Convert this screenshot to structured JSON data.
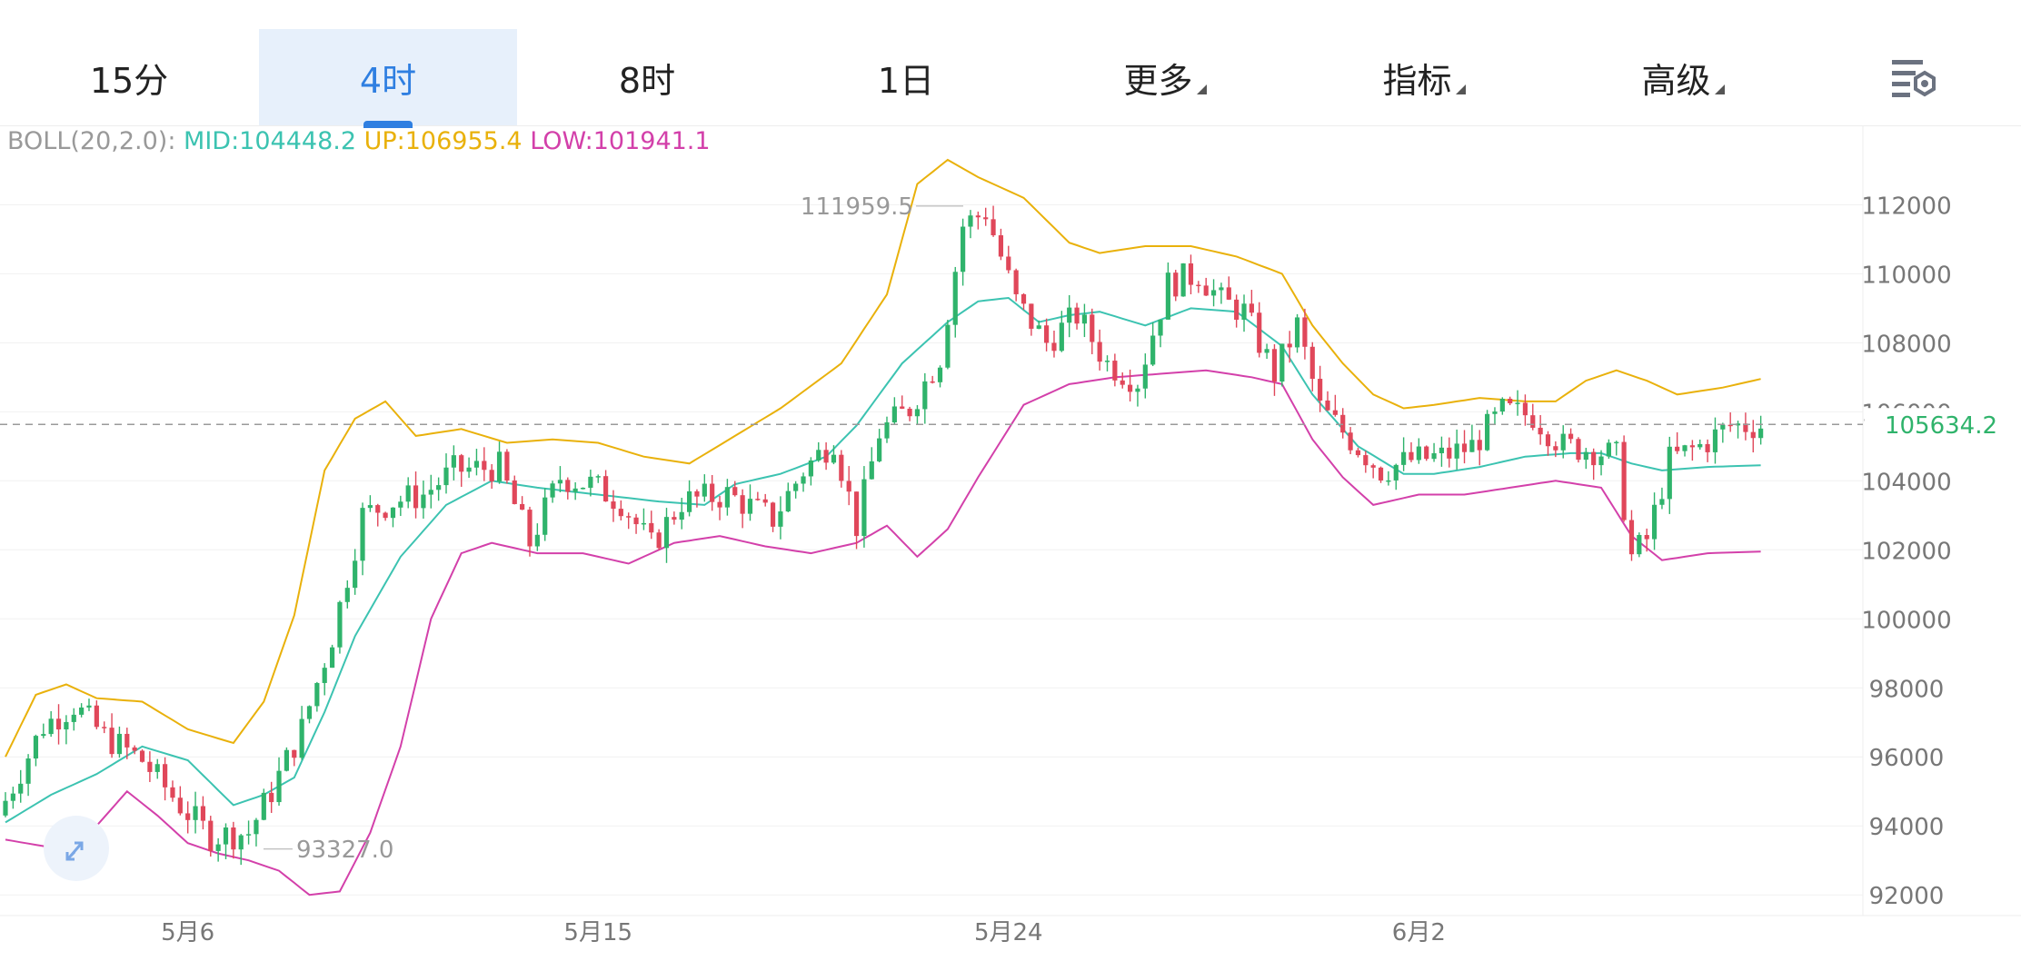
{
  "tabs": [
    {
      "label": "15分",
      "active": false,
      "dropdown": false
    },
    {
      "label": "4时",
      "active": true,
      "dropdown": false
    },
    {
      "label": "8时",
      "active": false,
      "dropdown": false
    },
    {
      "label": "1日",
      "active": false,
      "dropdown": false
    },
    {
      "label": "更多",
      "active": false,
      "dropdown": true
    },
    {
      "label": "指标",
      "active": false,
      "dropdown": true
    },
    {
      "label": "高级",
      "active": false,
      "dropdown": true
    }
  ],
  "settings_icon": "chart-settings-icon",
  "expand_icon": "expand-arrows-icon",
  "legend": {
    "prefix": "BOLL(20,2.0):",
    "mid": "MID:104448.2",
    "up": "UP:106955.4",
    "low": "LOW:101941.1"
  },
  "colors": {
    "accent": "#2f7fe1",
    "up_candle": "#2fb36b",
    "down_candle": "#e0475a",
    "mid": "#3cc3b1",
    "upper": "#e9b10b",
    "lower": "#d340aa",
    "price_label": "#2fb36b"
  },
  "chart_data": {
    "type": "candlestick",
    "indicator": "BOLL(20,2.0)",
    "y_ticks": [
      92000,
      94000,
      96000,
      98000,
      100000,
      102000,
      104000,
      106000,
      108000,
      110000,
      112000
    ],
    "ylim": [
      91400,
      114300
    ],
    "x_labels": [
      {
        "label": "5月6",
        "index": 24
      },
      {
        "label": "5月15",
        "index": 78
      },
      {
        "label": "5月24",
        "index": 132
      },
      {
        "label": "6月2",
        "index": 186
      }
    ],
    "current_price": 105634.2,
    "current_price_label": "105634.2",
    "high_annotation": {
      "label": "111959.5",
      "value": 111959.5,
      "index": 127
    },
    "low_annotation": {
      "label": "93327.0",
      "value": 93327.0,
      "index": 33
    },
    "candles_count": 232,
    "keypoints": [
      [
        0,
        94300
      ],
      [
        3,
        95600
      ],
      [
        6,
        96900
      ],
      [
        10,
        97500
      ],
      [
        14,
        96600
      ],
      [
        19,
        95900
      ],
      [
        24,
        94600
      ],
      [
        28,
        93700
      ],
      [
        33,
        93800
      ],
      [
        36,
        95000
      ],
      [
        40,
        96800
      ],
      [
        44,
        99500
      ],
      [
        48,
        103000
      ],
      [
        52,
        103400
      ],
      [
        56,
        103600
      ],
      [
        60,
        104300
      ],
      [
        66,
        104400
      ],
      [
        70,
        102200
      ],
      [
        74,
        104100
      ],
      [
        78,
        103900
      ],
      [
        82,
        103400
      ],
      [
        86,
        102100
      ],
      [
        90,
        103400
      ],
      [
        96,
        103600
      ],
      [
        102,
        102900
      ],
      [
        106,
        104300
      ],
      [
        110,
        105200
      ],
      [
        113,
        102700
      ],
      [
        116,
        105400
      ],
      [
        120,
        106100
      ],
      [
        124,
        107600
      ],
      [
        127,
        111400
      ],
      [
        130,
        111800
      ],
      [
        134,
        109200
      ],
      [
        138,
        108000
      ],
      [
        142,
        108800
      ],
      [
        146,
        107400
      ],
      [
        150,
        106900
      ],
      [
        154,
        109700
      ],
      [
        158,
        110000
      ],
      [
        161,
        109200
      ],
      [
        164,
        108900
      ],
      [
        168,
        107100
      ],
      [
        171,
        108500
      ],
      [
        174,
        106100
      ],
      [
        178,
        105200
      ],
      [
        182,
        104300
      ],
      [
        186,
        104600
      ],
      [
        190,
        104700
      ],
      [
        194,
        105000
      ],
      [
        198,
        106000
      ],
      [
        202,
        105900
      ],
      [
        206,
        105000
      ],
      [
        210,
        104900
      ],
      [
        213,
        104700
      ],
      [
        215,
        101800
      ],
      [
        217,
        102300
      ],
      [
        220,
        104600
      ],
      [
        224,
        105000
      ],
      [
        228,
        105600
      ],
      [
        231,
        105600
      ]
    ],
    "mid": [
      [
        0,
        94100
      ],
      [
        6,
        94900
      ],
      [
        12,
        95500
      ],
      [
        18,
        96300
      ],
      [
        24,
        95900
      ],
      [
        30,
        94600
      ],
      [
        34,
        94900
      ],
      [
        38,
        95400
      ],
      [
        42,
        97300
      ],
      [
        46,
        99500
      ],
      [
        52,
        101800
      ],
      [
        58,
        103300
      ],
      [
        64,
        104000
      ],
      [
        70,
        103800
      ],
      [
        78,
        103600
      ],
      [
        86,
        103400
      ],
      [
        92,
        103300
      ],
      [
        96,
        103900
      ],
      [
        102,
        104200
      ],
      [
        108,
        104700
      ],
      [
        112,
        105600
      ],
      [
        118,
        107400
      ],
      [
        124,
        108600
      ],
      [
        128,
        109200
      ],
      [
        132,
        109300
      ],
      [
        136,
        108600
      ],
      [
        140,
        108800
      ],
      [
        144,
        108900
      ],
      [
        150,
        108500
      ],
      [
        156,
        109000
      ],
      [
        162,
        108900
      ],
      [
        168,
        107900
      ],
      [
        172,
        106500
      ],
      [
        178,
        105000
      ],
      [
        184,
        104200
      ],
      [
        188,
        104200
      ],
      [
        194,
        104400
      ],
      [
        200,
        104700
      ],
      [
        206,
        104800
      ],
      [
        210,
        104800
      ],
      [
        214,
        104500
      ],
      [
        218,
        104300
      ],
      [
        224,
        104400
      ],
      [
        231,
        104450
      ]
    ],
    "upper": [
      [
        0,
        96000
      ],
      [
        4,
        97800
      ],
      [
        8,
        98100
      ],
      [
        12,
        97700
      ],
      [
        18,
        97600
      ],
      [
        24,
        96800
      ],
      [
        30,
        96400
      ],
      [
        34,
        97600
      ],
      [
        38,
        100100
      ],
      [
        42,
        104300
      ],
      [
        46,
        105800
      ],
      [
        50,
        106300
      ],
      [
        54,
        105300
      ],
      [
        60,
        105500
      ],
      [
        66,
        105100
      ],
      [
        72,
        105200
      ],
      [
        78,
        105100
      ],
      [
        84,
        104700
      ],
      [
        90,
        104500
      ],
      [
        96,
        105300
      ],
      [
        102,
        106100
      ],
      [
        110,
        107400
      ],
      [
        116,
        109400
      ],
      [
        120,
        112600
      ],
      [
        124,
        113300
      ],
      [
        128,
        112800
      ],
      [
        134,
        112200
      ],
      [
        140,
        110900
      ],
      [
        144,
        110600
      ],
      [
        150,
        110800
      ],
      [
        156,
        110800
      ],
      [
        162,
        110500
      ],
      [
        168,
        110000
      ],
      [
        172,
        108500
      ],
      [
        176,
        107400
      ],
      [
        180,
        106500
      ],
      [
        184,
        106100
      ],
      [
        188,
        106200
      ],
      [
        194,
        106400
      ],
      [
        200,
        106300
      ],
      [
        204,
        106300
      ],
      [
        208,
        106900
      ],
      [
        212,
        107200
      ],
      [
        216,
        106900
      ],
      [
        220,
        106500
      ],
      [
        226,
        106700
      ],
      [
        231,
        106950
      ]
    ],
    "lower": [
      [
        0,
        93600
      ],
      [
        8,
        93300
      ],
      [
        12,
        94000
      ],
      [
        16,
        95000
      ],
      [
        20,
        94300
      ],
      [
        24,
        93500
      ],
      [
        28,
        93200
      ],
      [
        32,
        93000
      ],
      [
        36,
        92700
      ],
      [
        40,
        92000
      ],
      [
        44,
        92100
      ],
      [
        48,
        93800
      ],
      [
        52,
        96300
      ],
      [
        56,
        100000
      ],
      [
        60,
        101900
      ],
      [
        64,
        102200
      ],
      [
        70,
        101900
      ],
      [
        76,
        101900
      ],
      [
        82,
        101600
      ],
      [
        88,
        102200
      ],
      [
        94,
        102400
      ],
      [
        100,
        102100
      ],
      [
        106,
        101900
      ],
      [
        112,
        102200
      ],
      [
        116,
        102700
      ],
      [
        120,
        101800
      ],
      [
        124,
        102600
      ],
      [
        128,
        104100
      ],
      [
        134,
        106200
      ],
      [
        140,
        106800
      ],
      [
        146,
        107000
      ],
      [
        152,
        107100
      ],
      [
        158,
        107200
      ],
      [
        164,
        107000
      ],
      [
        168,
        106800
      ],
      [
        172,
        105200
      ],
      [
        176,
        104100
      ],
      [
        180,
        103300
      ],
      [
        186,
        103600
      ],
      [
        192,
        103600
      ],
      [
        198,
        103800
      ],
      [
        204,
        104000
      ],
      [
        210,
        103800
      ],
      [
        214,
        102400
      ],
      [
        218,
        101700
      ],
      [
        224,
        101900
      ],
      [
        231,
        101950
      ]
    ]
  }
}
